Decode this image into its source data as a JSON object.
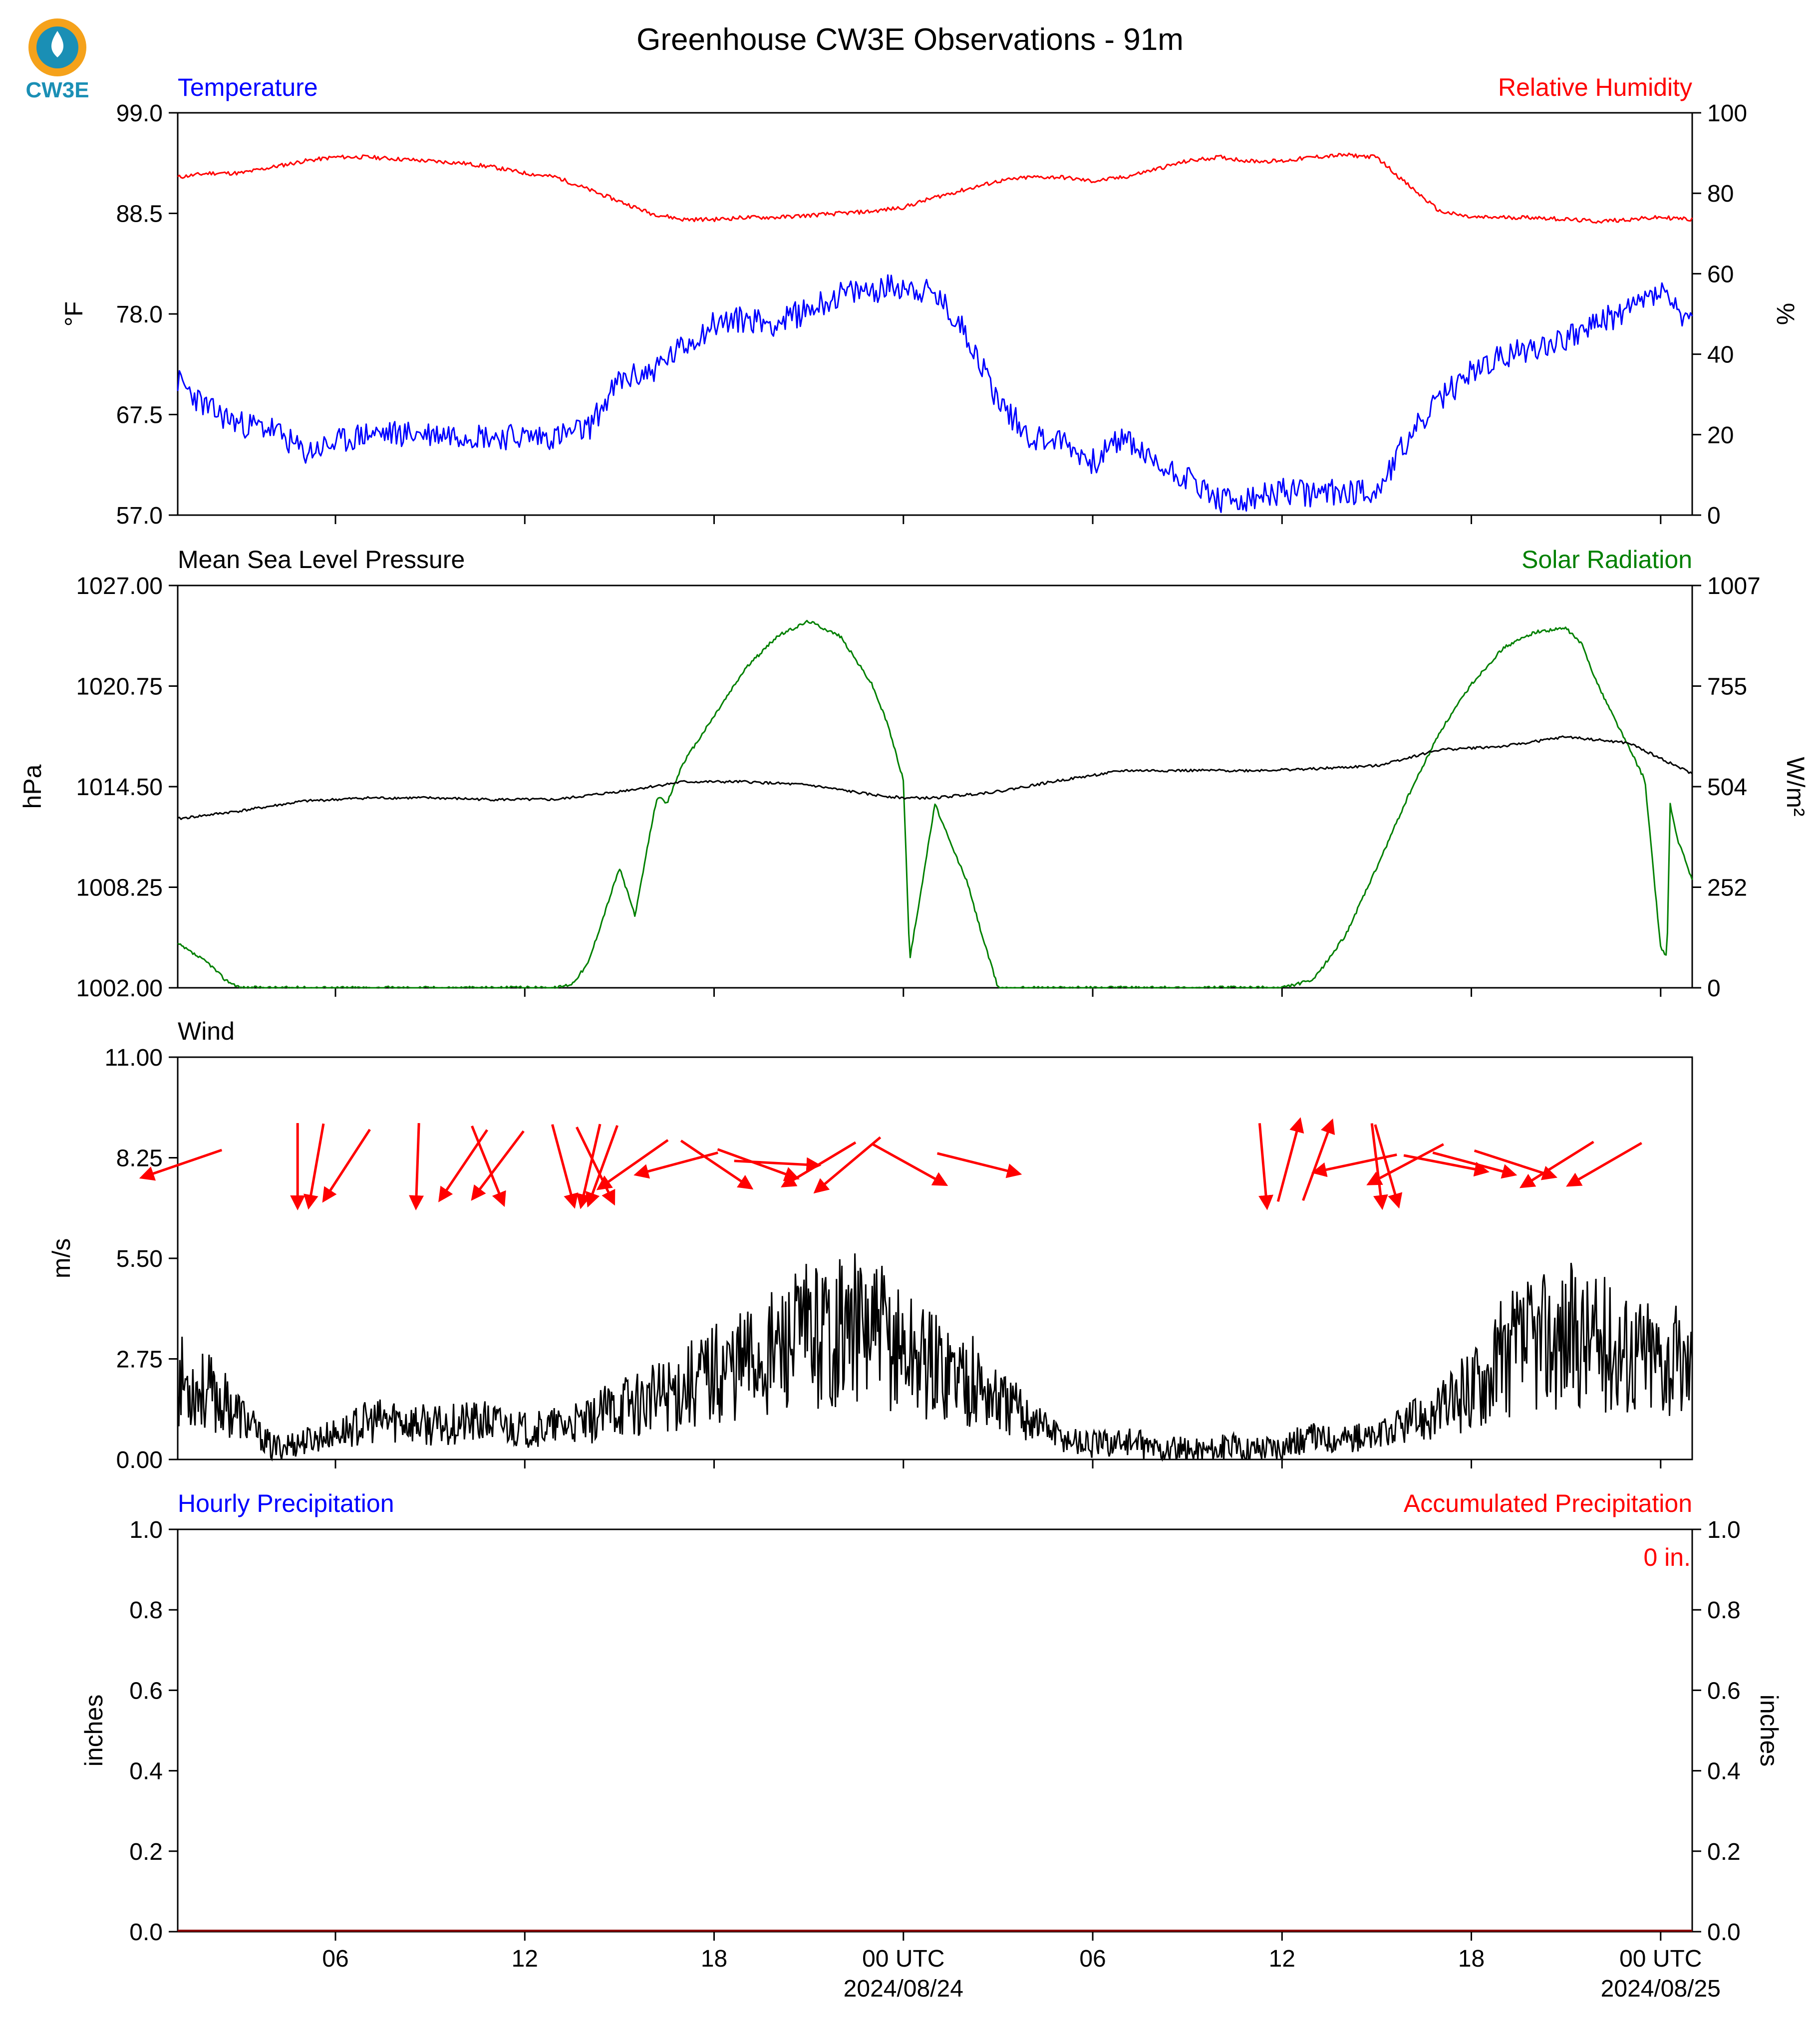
{
  "title": "Greenhouse CW3E Observations - 91m",
  "logo_text": "CW3E",
  "colors": {
    "blue": "#0000ff",
    "red": "#ff0000",
    "green": "#008000",
    "black": "#000000",
    "logo_orange": "#f5a21b",
    "logo_teal": "#1a8fb5"
  },
  "x_ticks": [
    "06",
    "12",
    "18",
    "00 UTC",
    "06",
    "12",
    "18",
    "00 UTC"
  ],
  "x_dates": [
    "2024/08/24",
    "2024/08/25"
  ],
  "panels": {
    "temp_rh": {
      "left_label": "Temperature",
      "right_label": "Relative Humidity",
      "left_unit": "°F",
      "right_unit": "%",
      "left_ticks": [
        "99.0",
        "88.5",
        "78.0",
        "67.5",
        "57.0"
      ],
      "right_ticks": [
        "100",
        "80",
        "60",
        "40",
        "20",
        "0"
      ]
    },
    "pressure_solar": {
      "left_label": "Mean Sea Level Pressure",
      "right_label": "Solar Radiation",
      "left_unit": "hPa",
      "right_unit": "W/m²",
      "left_ticks": [
        "1027.00",
        "1020.75",
        "1014.50",
        "1008.25",
        "1002.00"
      ],
      "right_ticks": [
        "1007",
        "755",
        "504",
        "252",
        "0"
      ]
    },
    "wind": {
      "left_label": "Wind",
      "left_unit": "m/s",
      "left_ticks": [
        "11.00",
        "8.25",
        "5.50",
        "2.75",
        "0.00"
      ]
    },
    "precip": {
      "left_label": "Hourly Precipitation",
      "right_label": "Accumulated Precipitation",
      "left_unit": "inches",
      "right_unit": "inches",
      "left_ticks": [
        "1.0",
        "0.8",
        "0.6",
        "0.4",
        "0.2",
        "0.0"
      ],
      "right_ticks": [
        "1.0",
        "0.8",
        "0.6",
        "0.4",
        "0.2",
        "0.0"
      ],
      "total_label": "0 in."
    }
  },
  "chart_data": [
    {
      "type": "line",
      "title": "Temperature / Relative Humidity",
      "x_units": "hours since 2024-08-23 01 UTC",
      "xlim": [
        0,
        48
      ],
      "series": [
        {
          "name": "Temperature",
          "axis": "left",
          "ylim": [
            57.0,
            99.0
          ],
          "x": [
            0,
            1,
            2,
            3,
            4,
            5,
            6,
            7,
            8,
            9,
            10,
            11,
            12,
            13,
            14,
            15,
            16,
            17,
            18,
            19,
            20,
            21,
            22,
            23,
            24,
            25,
            26,
            27,
            28,
            29,
            30,
            31,
            32,
            33,
            34,
            35,
            36,
            37,
            38,
            39,
            40,
            41,
            42,
            43,
            44,
            45,
            46,
            47,
            48
          ],
          "y": [
            71,
            68,
            66.5,
            66,
            63.5,
            64.5,
            65.5,
            65.5,
            65.5,
            65.5,
            65.2,
            65.2,
            65.2,
            66,
            71,
            72,
            74.5,
            77,
            77.5,
            77,
            78.5,
            80,
            80.5,
            81,
            80,
            76,
            69,
            65.2,
            64.8,
            62.5,
            65.2,
            62.2,
            61,
            58.5,
            58.5,
            59.5,
            59.2,
            59.5,
            59.5,
            65,
            69,
            72,
            73.5,
            74.5,
            75.5,
            77,
            78.5,
            80.5,
            76.5
          ]
        },
        {
          "name": "Relative Humidity",
          "axis": "right",
          "ylim": [
            0,
            100
          ],
          "x": [
            0,
            1,
            2,
            3,
            4,
            5,
            6,
            7,
            8,
            9,
            10,
            11,
            12,
            13,
            14,
            15,
            16,
            17,
            18,
            19,
            20,
            21,
            22,
            23,
            24,
            25,
            26,
            27,
            28,
            29,
            30,
            31,
            32,
            33,
            34,
            35,
            36,
            37,
            38,
            39,
            40,
            41,
            42,
            43,
            44,
            45,
            46,
            47,
            48
          ],
          "y": [
            84,
            85,
            85,
            86.5,
            88,
            89,
            89,
            88.5,
            88,
            87.5,
            86.5,
            85,
            84,
            81,
            78,
            75,
            73.5,
            73.5,
            74,
            74,
            74.5,
            75,
            75.5,
            76.5,
            79,
            81,
            83,
            84,
            84,
            83,
            84,
            86,
            88,
            89,
            88,
            88,
            89,
            89.5,
            89,
            82,
            75.5,
            74,
            74,
            74,
            73.5,
            73,
            73.5,
            74,
            73.5
          ]
        }
      ]
    },
    {
      "type": "line",
      "title": "Mean Sea Level Pressure / Solar Radiation",
      "x_units": "hours since 2024-08-23 01 UTC",
      "xlim": [
        0,
        48
      ],
      "series": [
        {
          "name": "Mean Sea Level Pressure",
          "axis": "left",
          "ylim": [
            1002.0,
            1027.0
          ],
          "x": [
            0,
            2,
            4,
            6,
            8,
            10,
            12,
            14,
            16,
            18,
            20,
            22,
            23,
            24,
            26,
            28,
            30,
            32,
            34,
            36,
            38,
            40,
            42,
            44,
            46,
            48
          ],
          "y": [
            1012.5,
            1013.0,
            1013.6,
            1013.8,
            1013.8,
            1013.7,
            1013.7,
            1014.2,
            1014.8,
            1014.8,
            1014.6,
            1014.0,
            1013.8,
            1013.8,
            1014.2,
            1014.9,
            1015.5,
            1015.5,
            1015.5,
            1015.6,
            1015.8,
            1016.8,
            1017.0,
            1017.6,
            1017.2,
            1015.3
          ]
        },
        {
          "name": "Solar Radiation",
          "axis": "right",
          "ylim": [
            0,
            1007
          ],
          "x": [
            0,
            1,
            1.5,
            2,
            12,
            12.5,
            13,
            14,
            14.5,
            15,
            15.2,
            15.5,
            16,
            18,
            19,
            20,
            21,
            22,
            22.5,
            23,
            23.2,
            24,
            24.5,
            25,
            25.5,
            26,
            27,
            35,
            36,
            37,
            38,
            39,
            40,
            41,
            42,
            43,
            44,
            44.5,
            45,
            46,
            46.5,
            47,
            47.2,
            47.3,
            47.5,
            48
          ],
          "y": [
            110,
            60,
            20,
            0,
            0,
            10,
            60,
            300,
            180,
            400,
            480,
            460,
            560,
            800,
            880,
            918,
            880,
            760,
            660,
            520,
            70,
            460,
            360,
            270,
            130,
            0,
            0,
            0,
            20,
            130,
            300,
            480,
            640,
            760,
            850,
            890,
            900,
            860,
            760,
            600,
            520,
            100,
            80,
            460,
            380,
            270
          ]
        }
      ]
    },
    {
      "type": "line",
      "title": "Wind",
      "x_units": "hours since 2024-08-23 01 UTC",
      "xlim": [
        0,
        48
      ],
      "series": [
        {
          "name": "Wind",
          "axis": "left",
          "ylim": [
            0,
            11.0
          ],
          "x": [
            0,
            1,
            2,
            3,
            4,
            5,
            6,
            7,
            8,
            9,
            10,
            11,
            12,
            13,
            14,
            15,
            16,
            17,
            18,
            19,
            20,
            21,
            22,
            23,
            24,
            25,
            26,
            27,
            28,
            29,
            30,
            31,
            32,
            33,
            34,
            35,
            36,
            37,
            38,
            39,
            40,
            41,
            42,
            43,
            44,
            45,
            46,
            47,
            48
          ],
          "y": [
            2.2,
            1.8,
            1.2,
            0.3,
            0.5,
            0.7,
            1.0,
            1.1,
            0.9,
            1.0,
            1.0,
            0.8,
            0.9,
            1.0,
            1.5,
            1.6,
            2.0,
            2.4,
            2.7,
            3.0,
            3.4,
            3.6,
            3.5,
            3.0,
            2.6,
            2.3,
            1.6,
            1.2,
            0.6,
            0.4,
            0.5,
            0.3,
            0.2,
            0.3,
            0.3,
            0.4,
            0.6,
            0.6,
            0.6,
            1.0,
            1.3,
            2.0,
            2.8,
            3.2,
            3.4,
            3.2,
            3.0,
            2.8,
            2.5
          ]
        }
      ],
      "barbs": [
        {
          "x": 0.2,
          "dir": 251
        },
        {
          "x": 3.8,
          "dir": 180
        },
        {
          "x": 4.4,
          "dir": 190
        },
        {
          "x": 5.4,
          "dir": 213
        },
        {
          "x": 7.6,
          "dir": 182
        },
        {
          "x": 9.1,
          "dir": 214
        },
        {
          "x": 9.8,
          "dir": 158
        },
        {
          "x": 10.2,
          "dir": 217
        },
        {
          "x": 12.2,
          "dir": 165
        },
        {
          "x": 13.1,
          "dir": 193
        },
        {
          "x": 13.2,
          "dir": 154
        },
        {
          "x": 13.5,
          "dir": 200
        },
        {
          "x": 14.5,
          "dir": 235
        },
        {
          "x": 15.9,
          "dir": 255
        },
        {
          "x": 17.0,
          "dir": 124
        },
        {
          "x": 18.3,
          "dir": 110
        },
        {
          "x": 18.9,
          "dir": 93
        },
        {
          "x": 20.4,
          "dir": 239
        },
        {
          "x": 21.3,
          "dir": 230
        },
        {
          "x": 23.1,
          "dir": 119
        },
        {
          "x": 25.3,
          "dir": 104
        },
        {
          "x": 34.4,
          "dir": 175
        },
        {
          "x": 35.2,
          "dir": 15
        },
        {
          "x": 36.1,
          "dir": 20
        },
        {
          "x": 37.4,
          "dir": 258
        },
        {
          "x": 38.0,
          "dir": 173
        },
        {
          "x": 38.3,
          "dir": 164
        },
        {
          "x": 39.0,
          "dir": 242
        },
        {
          "x": 40.1,
          "dir": 101
        },
        {
          "x": 41.0,
          "dir": 105
        },
        {
          "x": 42.3,
          "dir": 108
        },
        {
          "x": 43.8,
          "dir": 238
        },
        {
          "x": 45.3,
          "dir": 240
        }
      ]
    },
    {
      "type": "line",
      "title": "Hourly Precipitation / Accumulated Precipitation",
      "x_units": "hours since 2024-08-23 01 UTC",
      "xlim": [
        0,
        48
      ],
      "series": [
        {
          "name": "Hourly Precipitation",
          "axis": "left",
          "ylim": [
            0,
            1.0
          ],
          "x": [
            0,
            48
          ],
          "y": [
            0,
            0
          ]
        },
        {
          "name": "Accumulated Precipitation",
          "axis": "right",
          "ylim": [
            0,
            1.0
          ],
          "x": [
            0,
            48
          ],
          "y": [
            0,
            0
          ]
        }
      ]
    }
  ]
}
